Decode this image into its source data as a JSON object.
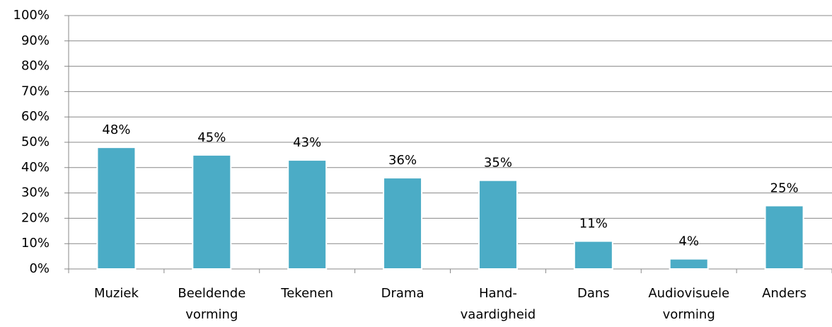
{
  "chart_data": {
    "type": "bar",
    "categories": [
      [
        "Muziek"
      ],
      [
        "Beeldende",
        "vorming"
      ],
      [
        "Tekenen"
      ],
      [
        "Drama"
      ],
      [
        "Hand-",
        "vaardigheid"
      ],
      [
        "Dans"
      ],
      [
        "Audiovisuele",
        "vorming"
      ],
      [
        "Anders"
      ]
    ],
    "values": [
      48,
      45,
      43,
      36,
      35,
      11,
      4,
      25
    ],
    "value_labels": [
      "48%",
      "45%",
      "43%",
      "36%",
      "35%",
      "11%",
      "4%",
      "25%"
    ],
    "color": "#4bacc6",
    "ylim": [
      0,
      100
    ],
    "yticks": [
      {
        "value": 0,
        "label": "0%"
      },
      {
        "value": 10,
        "label": "10%"
      },
      {
        "value": 20,
        "label": "20%"
      },
      {
        "value": 30,
        "label": "30%"
      },
      {
        "value": 40,
        "label": "40%"
      },
      {
        "value": 50,
        "label": "50%"
      },
      {
        "value": 60,
        "label": "60%"
      },
      {
        "value": 70,
        "label": "70%"
      },
      {
        "value": 80,
        "label": "80%"
      },
      {
        "value": 90,
        "label": "90%"
      },
      {
        "value": 100,
        "label": "100%"
      }
    ],
    "grid": true
  }
}
